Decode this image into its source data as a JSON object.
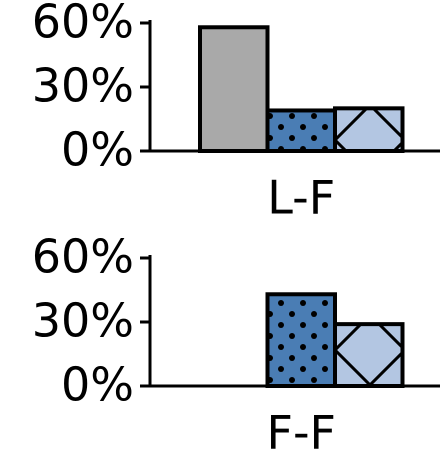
{
  "chart_data": [
    {
      "type": "bar",
      "categories": [
        "L-F"
      ],
      "series": [
        {
          "color": "#a9a9a9",
          "hatch": "none",
          "values": [
            58
          ]
        },
        {
          "color": "#4a7db4",
          "hatch": "dots",
          "values": [
            19
          ]
        },
        {
          "color": "#b3c6e2",
          "hatch": "x",
          "values": [
            20
          ]
        }
      ],
      "ylim": [
        0,
        60
      ],
      "yticks": [
        {
          "value": 0,
          "label": "0%"
        },
        {
          "value": 30,
          "label": "30%"
        },
        {
          "value": 60,
          "label": "60%"
        }
      ]
    },
    {
      "type": "bar",
      "categories": [
        "F-F"
      ],
      "series": [
        {
          "color": "#a9a9a9",
          "hatch": "none",
          "values": [
            0
          ]
        },
        {
          "color": "#4a7db4",
          "hatch": "dots",
          "values": [
            43
          ]
        },
        {
          "color": "#b3c6e2",
          "hatch": "x",
          "values": [
            29
          ]
        }
      ],
      "ylim": [
        0,
        60
      ],
      "yticks": [
        {
          "value": 0,
          "label": "0%"
        },
        {
          "value": 30,
          "label": "30%"
        },
        {
          "value": 60,
          "label": "60%"
        }
      ]
    }
  ]
}
